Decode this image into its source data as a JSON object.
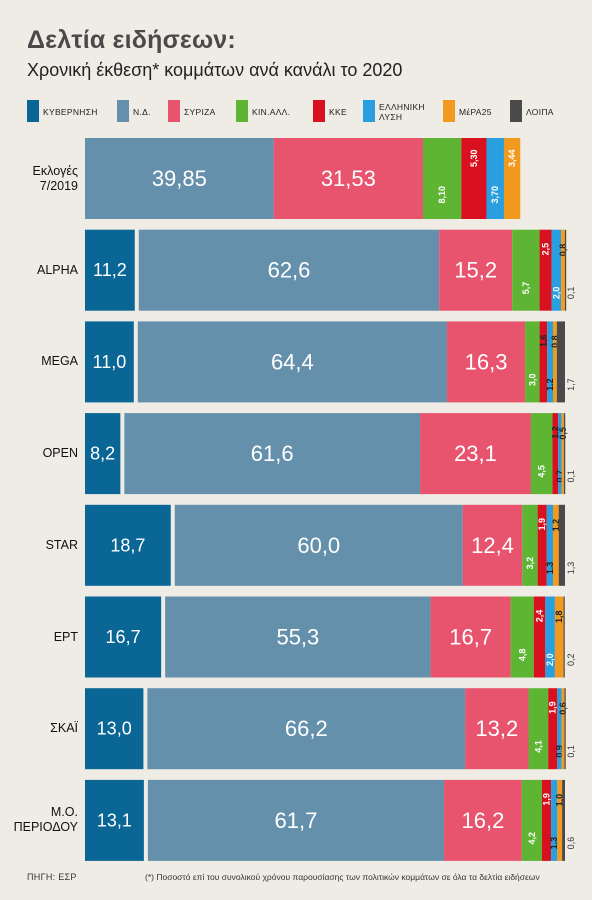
{
  "title": "Δελτία ειδήσεων:",
  "subtitle": "Χρονική έκθεση* κομμάτων ανά κανάλι το 2020",
  "source": "ΠΗΓΗ: ΕΣΡ",
  "footnote": "(*) Ποσοστό επί του συνολικού χρόνου παρουσίασης των πολιτικών κομμάτων σε όλα τα δελτία ειδήσεων",
  "chart_data": {
    "type": "bar",
    "orientation": "horizontal-stacked",
    "legend_position": "top",
    "series": [
      {
        "name": "ΚΥΒΕΡΝΗΣΗ",
        "color": "#0a6695"
      },
      {
        "name": "Ν.Δ.",
        "color": "#6590ab"
      },
      {
        "name": "ΣΥΡΙΖΑ",
        "color": "#e8546e"
      },
      {
        "name": "ΚΙΝ.ΑΛΛ.",
        "color": "#5eb533"
      },
      {
        "name": "ΚΚΕ",
        "color": "#d9101f"
      },
      {
        "name": "ΕΛΛΗΝΙΚΗ ΛΥΣΗ",
        "color": "#2a9fe0"
      },
      {
        "name": "ΜέΡΑ25",
        "color": "#f29a1e"
      },
      {
        "name": "ΛΟΙΠΑ",
        "color": "#4a4a4a"
      }
    ],
    "rows": [
      {
        "label": "Εκλογές 7/2019",
        "values": [
          null,
          39.85,
          31.53,
          8.1,
          5.3,
          3.7,
          3.44,
          null
        ],
        "labels": [
          "",
          "39,85",
          "31,53",
          "8,10",
          "5,30",
          "3,70",
          "3,44",
          ""
        ]
      },
      {
        "label": "ALPHA",
        "values": [
          11.2,
          62.6,
          15.2,
          5.7,
          2.5,
          2.0,
          0.8,
          0.1
        ],
        "labels": [
          "11,2",
          "62,6",
          "15,2",
          "5,7",
          "2,5",
          "2,0",
          "0,8",
          "0,1"
        ]
      },
      {
        "label": "MEGA",
        "values": [
          11.0,
          64.4,
          16.3,
          3.0,
          1.6,
          1.2,
          0.8,
          1.7
        ],
        "labels": [
          "11,0",
          "64,4",
          "16,3",
          "3,0",
          "1,6",
          "1,2",
          "0,8",
          "1,7"
        ]
      },
      {
        "label": "OPEN",
        "values": [
          8.2,
          61.6,
          23.1,
          4.5,
          1.2,
          0.7,
          0.5,
          0.1
        ],
        "labels": [
          "8,2",
          "61,6",
          "23,1",
          "4,5",
          "1,2",
          "0,7",
          "0,5",
          "0,1"
        ]
      },
      {
        "label": "STAR",
        "values": [
          18.7,
          60.0,
          12.4,
          3.2,
          1.9,
          1.3,
          1.2,
          1.3
        ],
        "labels": [
          "18,7",
          "60,0",
          "12,4",
          "3,2",
          "1,9",
          "1,3",
          "1,2",
          "1,3"
        ]
      },
      {
        "label": "ΕΡΤ",
        "values": [
          16.7,
          55.3,
          16.7,
          4.8,
          2.4,
          2.0,
          1.8,
          0.2
        ],
        "labels": [
          "16,7",
          "55,3",
          "16,7",
          "4,8",
          "2,4",
          "2,0",
          "1,8",
          "0,2"
        ]
      },
      {
        "label": "ΣΚΑΪ",
        "values": [
          13.0,
          66.2,
          13.2,
          4.1,
          1.9,
          0.9,
          0.6,
          0.1
        ],
        "labels": [
          "13,0",
          "66,2",
          "13,2",
          "4,1",
          "1,9",
          "0,9",
          "0,6",
          "0,1"
        ]
      },
      {
        "label": "Μ.Ο. ΠΕΡΙΟΔΟΥ",
        "values": [
          13.1,
          61.7,
          16.2,
          4.2,
          1.9,
          1.3,
          1.0,
          0.6
        ],
        "labels": [
          "13,1",
          "61,7",
          "16,2",
          "4,2",
          "1,9",
          "1,3",
          "1,0",
          "0,6"
        ]
      }
    ]
  }
}
